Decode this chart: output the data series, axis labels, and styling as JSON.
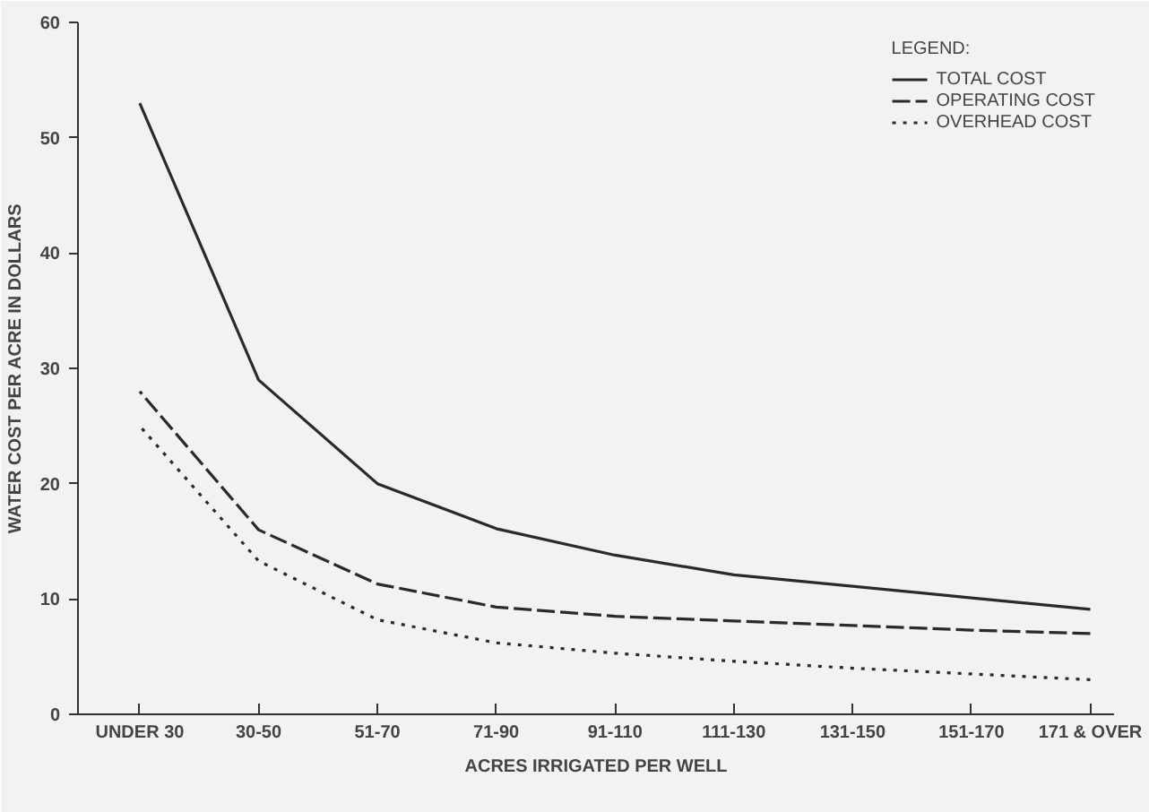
{
  "chart_data": {
    "type": "line",
    "xlabel": "ACRES IRRIGATED PER WELL",
    "ylabel": "WATER COST PER ACRE IN DOLLARS",
    "legend_title": "LEGEND:",
    "legend": "top right",
    "grid": false,
    "categories": [
      "UNDER 30",
      "30-50",
      "51-70",
      "71-90",
      "91-110",
      "111-130",
      "131-150",
      "151-170",
      "171 & OVER"
    ],
    "ylim": [
      0,
      60
    ],
    "yticks": [
      0,
      10,
      20,
      30,
      40,
      50,
      60
    ],
    "series": [
      {
        "name": "TOTAL COST",
        "color": "#2a2a2a",
        "line_style": "solid",
        "values": [
          53,
          29,
          20,
          16.1,
          13.8,
          12.1,
          11.1,
          10.1,
          9.1
        ]
      },
      {
        "name": "OPERATING COST",
        "color": "#2a2a2a",
        "line_style": "dashed",
        "values": [
          28,
          16,
          11.3,
          9.3,
          8.5,
          8.1,
          7.7,
          7.3,
          7.0
        ]
      },
      {
        "name": "OVERHEAD COST",
        "color": "#2a2a2a",
        "line_style": "dotted",
        "values": [
          25,
          13.3,
          8.2,
          6.2,
          5.3,
          4.6,
          4.0,
          3.5,
          3.0
        ]
      }
    ]
  }
}
